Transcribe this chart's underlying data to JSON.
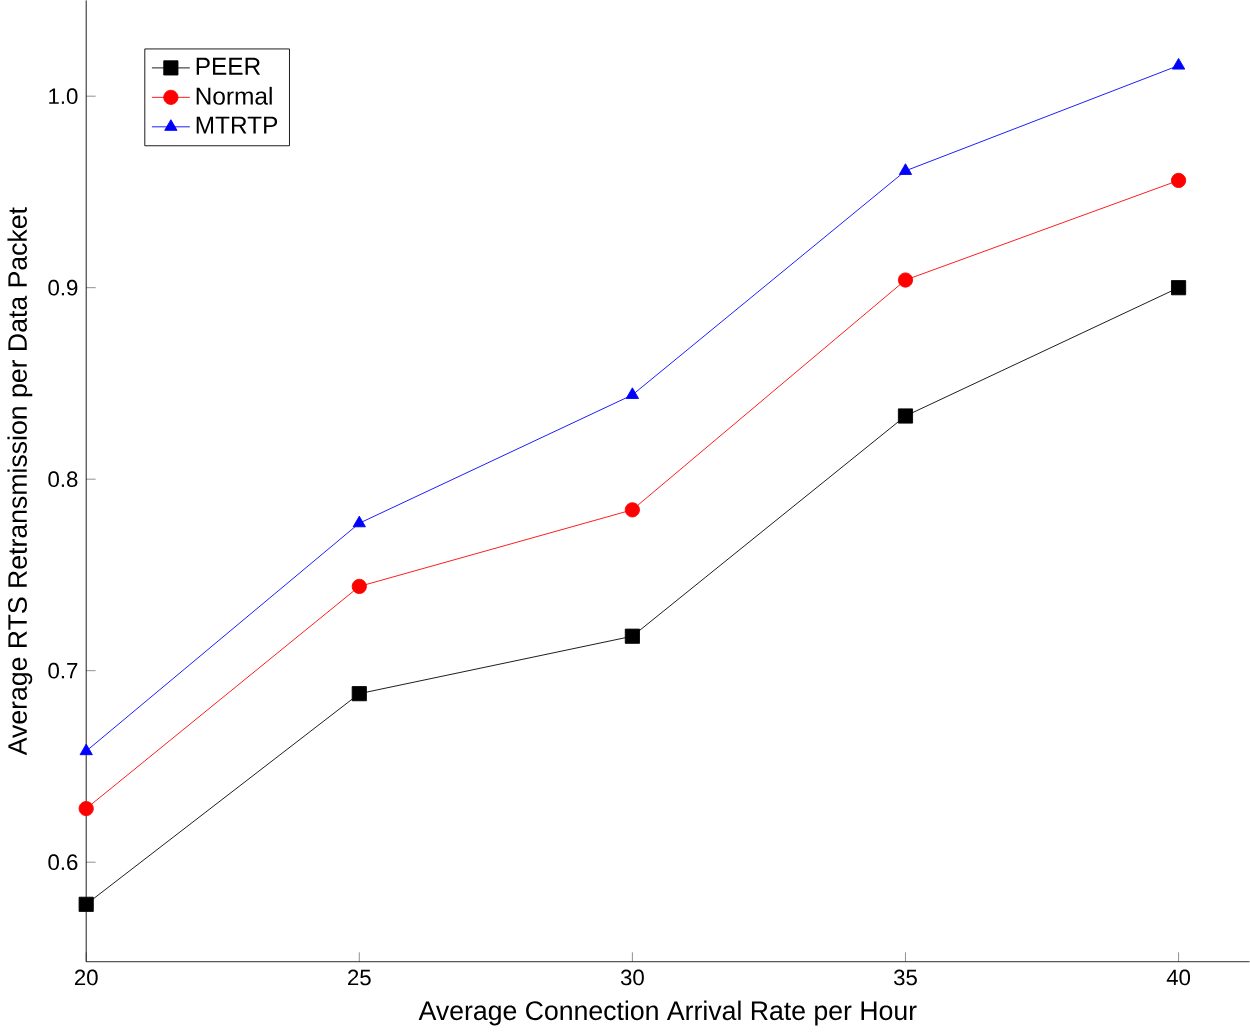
{
  "chart_data": {
    "type": "line",
    "xlabel": "Average Connection Arrival Rate per Hour",
    "ylabel": "Average RTS Retransmission per Data Packet",
    "x": [
      20,
      25,
      30,
      35,
      40
    ],
    "series": [
      {
        "name": "PEER",
        "color": "#000000",
        "marker": "square",
        "values": [
          0.578,
          0.688,
          0.718,
          0.833,
          0.9
        ]
      },
      {
        "name": "Normal",
        "color": "#ff0000",
        "marker": "circle",
        "values": [
          0.628,
          0.744,
          0.784,
          0.904,
          0.956
        ]
      },
      {
        "name": "MTRTP",
        "color": "#0000ff",
        "marker": "triangle",
        "values": [
          0.658,
          0.777,
          0.844,
          0.961,
          1.016
        ]
      }
    ],
    "xlim": [
      20,
      41.3
    ],
    "ylim": [
      0.548,
      1.05
    ],
    "xticks": [
      20,
      25,
      30,
      35,
      40
    ],
    "yticks": [
      {
        "value": 0.6,
        "label": "0.6"
      },
      {
        "value": 0.7,
        "label": "0.7"
      },
      {
        "value": 0.8,
        "label": "0.8"
      },
      {
        "value": 0.9,
        "label": "0.9"
      },
      {
        "value": 1.0,
        "label": "1.0"
      }
    ],
    "legend": "top left",
    "grid": false,
    "line_style": "solid"
  }
}
